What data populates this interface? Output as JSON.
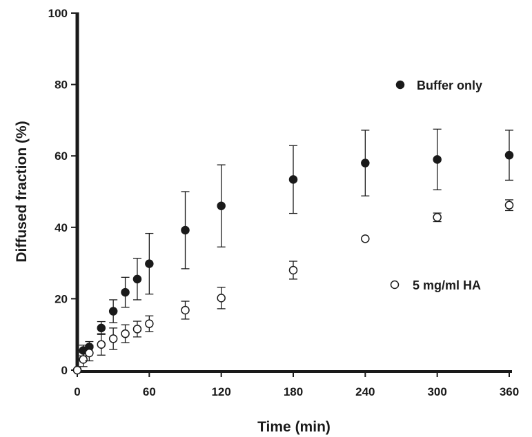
{
  "chart_data": {
    "type": "scatter",
    "xlabel": "Time (min)",
    "ylabel": "Diffused fraction (%)",
    "xlim": [
      0,
      360
    ],
    "ylim": [
      0,
      100
    ],
    "x_ticks": [
      "0",
      "60",
      "120",
      "180",
      "240",
      "300",
      "360"
    ],
    "y_ticks": [
      "0",
      "20",
      "40",
      "60",
      "80",
      "100"
    ],
    "grid": false,
    "legend": "inside-right",
    "series": [
      {
        "name": "Buffer only",
        "marker": "filled-circle",
        "color": "#1a1a1a",
        "x": [
          0,
          5,
          10,
          20,
          30,
          40,
          50,
          60,
          90,
          120,
          180,
          240,
          300,
          360
        ],
        "y": [
          0,
          5.5,
          6.5,
          11.8,
          16.5,
          21.8,
          25.5,
          29.8,
          39.2,
          46.0,
          53.4,
          58.0,
          59.0,
          60.2
        ],
        "err": [
          0,
          1.5,
          1.5,
          1.8,
          3.2,
          4.2,
          5.8,
          8.5,
          10.8,
          11.5,
          9.5,
          9.2,
          8.5,
          7.0
        ]
      },
      {
        "name": "5 mg/ml HA",
        "marker": "open-circle",
        "color": "#1a1a1a",
        "x": [
          0,
          5,
          10,
          20,
          30,
          40,
          50,
          60,
          90,
          120,
          180,
          240,
          300,
          360
        ],
        "y": [
          0,
          3.0,
          4.8,
          7.2,
          8.8,
          10.2,
          11.5,
          13.0,
          16.8,
          20.2,
          28.0,
          36.8,
          42.8,
          46.2
        ],
        "err": [
          0,
          2.0,
          2.2,
          3.0,
          3.0,
          2.5,
          2.2,
          2.2,
          2.5,
          3.0,
          2.5,
          0,
          1.2,
          1.5
        ]
      }
    ]
  }
}
